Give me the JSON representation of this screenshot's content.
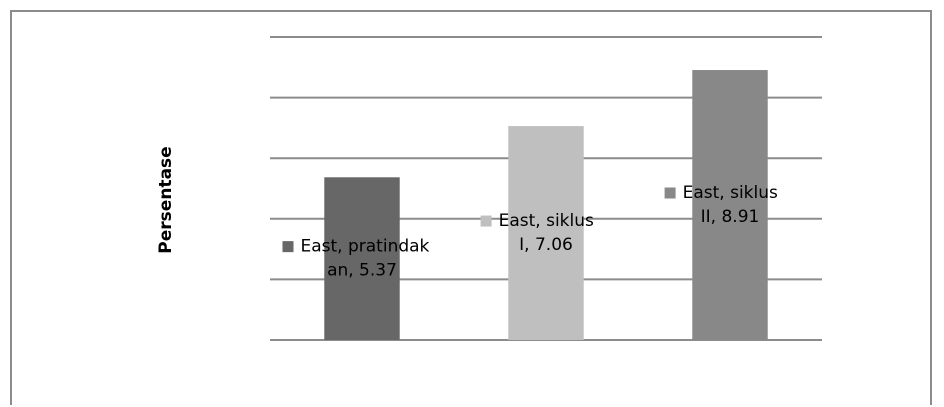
{
  "chart_data": {
    "type": "bar",
    "title": "",
    "xlabel": "",
    "ylabel": "Persentase",
    "ylim": [
      0,
      10
    ],
    "grid": true,
    "categories": [
      "pratindakan",
      "siklus I",
      "siklus II"
    ],
    "series": [
      {
        "name": "East",
        "values": [
          5.37,
          7.06,
          8.91
        ]
      }
    ],
    "bar_colors": [
      "#676767",
      "#bfbfbf",
      "#888888"
    ],
    "data_labels": [
      {
        "lines": [
          "East, pratindak",
          "an, 5.37"
        ]
      },
      {
        "lines": [
          "East, siklus",
          "I, 7.06"
        ]
      },
      {
        "lines": [
          "East, siklus",
          "II, 8.91"
        ]
      }
    ]
  }
}
